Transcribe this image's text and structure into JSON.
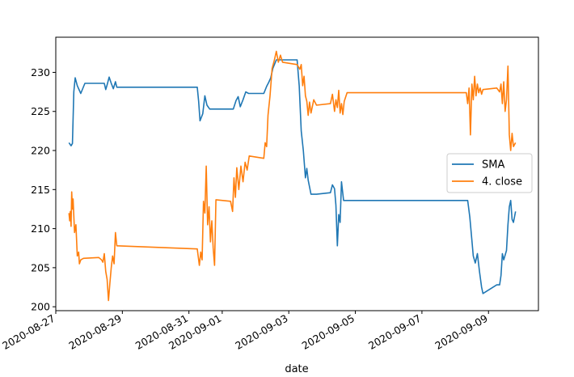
{
  "chart_data": {
    "type": "line",
    "title": "",
    "xlabel": "date",
    "ylabel": "",
    "grid": false,
    "legend_position": "center-right",
    "xlim": [
      "2020-08-27T00:00",
      "2020-09-10T12:00"
    ],
    "ylim": [
      199.5,
      234.5
    ],
    "x_ticks": [
      "2020-08-27",
      "2020-08-29",
      "2020-08-31",
      "2020-09-01",
      "2020-09-03",
      "2020-09-05",
      "2020-09-07",
      "2020-09-09"
    ],
    "y_ticks": [
      200,
      205,
      210,
      215,
      220,
      225,
      230
    ],
    "series": [
      {
        "name": "SMA",
        "color": "#1f77b4",
        "points": [
          [
            "2020-08-27T09:30",
            221.0
          ],
          [
            "2020-08-27T11:00",
            220.6
          ],
          [
            "2020-08-27T12:00",
            220.9
          ],
          [
            "2020-08-27T13:00",
            227.5
          ],
          [
            "2020-08-27T14:00",
            229.3
          ],
          [
            "2020-08-27T15:30",
            228.3
          ],
          [
            "2020-08-27T18:00",
            227.3
          ],
          [
            "2020-08-27T21:00",
            228.6
          ],
          [
            "2020-08-28T08:00",
            228.6
          ],
          [
            "2020-08-28T11:00",
            228.6
          ],
          [
            "2020-08-28T12:00",
            227.8
          ],
          [
            "2020-08-28T13:00",
            228.4
          ],
          [
            "2020-08-28T14:30",
            229.4
          ],
          [
            "2020-08-28T16:00",
            228.6
          ],
          [
            "2020-08-28T17:30",
            227.9
          ],
          [
            "2020-08-28T19:00",
            228.8
          ],
          [
            "2020-08-28T20:00",
            228.1
          ],
          [
            "2020-08-31T06:00",
            228.1
          ],
          [
            "2020-08-31T07:00",
            226.3
          ],
          [
            "2020-08-31T08:00",
            223.8
          ],
          [
            "2020-08-31T10:00",
            224.7
          ],
          [
            "2020-08-31T11:30",
            227.0
          ],
          [
            "2020-08-31T13:00",
            225.8
          ],
          [
            "2020-08-31T15:00",
            225.3
          ],
          [
            "2020-08-31T20:00",
            225.3
          ],
          [
            "2020-09-01T08:00",
            225.3
          ],
          [
            "2020-09-01T10:00",
            226.4
          ],
          [
            "2020-09-01T11:30",
            226.9
          ],
          [
            "2020-09-01T13:00",
            225.6
          ],
          [
            "2020-09-01T15:00",
            226.5
          ],
          [
            "2020-09-01T17:00",
            227.5
          ],
          [
            "2020-09-01T19:00",
            227.3
          ],
          [
            "2020-09-02T06:00",
            227.3
          ],
          [
            "2020-09-02T08:00",
            228.2
          ],
          [
            "2020-09-02T09:30",
            228.7
          ],
          [
            "2020-09-02T11:00",
            229.3
          ],
          [
            "2020-09-02T12:30",
            230.5
          ],
          [
            "2020-09-02T15:00",
            231.6
          ],
          [
            "2020-09-02T20:00",
            231.6
          ],
          [
            "2020-09-03T06:00",
            231.6
          ],
          [
            "2020-09-03T07:30",
            228.3
          ],
          [
            "2020-09-03T09:00",
            222.5
          ],
          [
            "2020-09-03T10:30",
            220.0
          ],
          [
            "2020-09-03T12:00",
            216.5
          ],
          [
            "2020-09-03T13:00",
            217.7
          ],
          [
            "2020-09-03T14:00",
            216.2
          ],
          [
            "2020-09-03T16:00",
            214.4
          ],
          [
            "2020-09-03T20:00",
            214.4
          ],
          [
            "2020-09-04T06:00",
            214.6
          ],
          [
            "2020-09-04T07:30",
            215.6
          ],
          [
            "2020-09-04T09:00",
            215.1
          ],
          [
            "2020-09-04T10:00",
            213.0
          ],
          [
            "2020-09-04T11:00",
            207.8
          ],
          [
            "2020-09-04T12:00",
            211.8
          ],
          [
            "2020-09-04T13:00",
            210.8
          ],
          [
            "2020-09-04T14:00",
            216.0
          ],
          [
            "2020-09-04T15:30",
            213.6
          ],
          [
            "2020-09-04T20:00",
            213.6
          ],
          [
            "2020-09-08T09:00",
            213.6
          ],
          [
            "2020-09-08T10:30",
            211.5
          ],
          [
            "2020-09-08T12:00",
            208.5
          ],
          [
            "2020-09-08T13:00",
            206.5
          ],
          [
            "2020-09-08T14:30",
            205.6
          ],
          [
            "2020-09-08T16:00",
            206.8
          ],
          [
            "2020-09-08T17:30",
            204.5
          ],
          [
            "2020-09-08T19:00",
            202.5
          ],
          [
            "2020-09-08T20:00",
            201.7
          ],
          [
            "2020-09-09T06:00",
            202.8
          ],
          [
            "2020-09-09T08:00",
            202.8
          ],
          [
            "2020-09-09T09:00",
            204.0
          ],
          [
            "2020-09-09T10:00",
            206.8
          ],
          [
            "2020-09-09T11:00",
            206.0
          ],
          [
            "2020-09-09T13:00",
            207.2
          ],
          [
            "2020-09-09T14:00",
            210.5
          ],
          [
            "2020-09-09T15:00",
            212.8
          ],
          [
            "2020-09-09T16:00",
            213.6
          ],
          [
            "2020-09-09T17:00",
            211.2
          ],
          [
            "2020-09-09T18:00",
            210.8
          ],
          [
            "2020-09-09T19:30",
            212.2
          ]
        ]
      },
      {
        "name": "4. close",
        "color": "#ff7f0e",
        "points": [
          [
            "2020-08-27T09:30",
            212.0
          ],
          [
            "2020-08-27T10:00",
            211.0
          ],
          [
            "2020-08-27T10:30",
            212.2
          ],
          [
            "2020-08-27T11:00",
            210.3
          ],
          [
            "2020-08-27T11:30",
            214.7
          ],
          [
            "2020-08-27T12:00",
            212.5
          ],
          [
            "2020-08-27T12:30",
            213.8
          ],
          [
            "2020-08-27T13:30",
            209.5
          ],
          [
            "2020-08-27T14:30",
            210.5
          ],
          [
            "2020-08-27T15:30",
            206.5
          ],
          [
            "2020-08-27T16:30",
            207.0
          ],
          [
            "2020-08-27T17:00",
            205.5
          ],
          [
            "2020-08-27T18:00",
            206.0
          ],
          [
            "2020-08-27T20:00",
            206.2
          ],
          [
            "2020-08-28T07:00",
            206.3
          ],
          [
            "2020-08-28T09:00",
            206.0
          ],
          [
            "2020-08-28T10:00",
            205.7
          ],
          [
            "2020-08-28T11:00",
            206.8
          ],
          [
            "2020-08-28T12:00",
            204.5
          ],
          [
            "2020-08-28T13:00",
            203.5
          ],
          [
            "2020-08-28T14:00",
            200.8
          ],
          [
            "2020-08-28T15:00",
            203.0
          ],
          [
            "2020-08-28T16:00",
            205.0
          ],
          [
            "2020-08-28T17:00",
            206.5
          ],
          [
            "2020-08-28T18:00",
            205.5
          ],
          [
            "2020-08-28T19:00",
            209.5
          ],
          [
            "2020-08-28T20:00",
            207.8
          ],
          [
            "2020-08-31T06:00",
            207.4
          ],
          [
            "2020-08-31T07:30",
            205.3
          ],
          [
            "2020-08-31T08:30",
            207.0
          ],
          [
            "2020-08-31T09:30",
            206.0
          ],
          [
            "2020-08-31T10:30",
            213.5
          ],
          [
            "2020-08-31T11:30",
            212.0
          ],
          [
            "2020-08-31T12:30",
            218.0
          ],
          [
            "2020-08-31T13:30",
            210.5
          ],
          [
            "2020-08-31T14:30",
            212.8
          ],
          [
            "2020-08-31T15:30",
            208.3
          ],
          [
            "2020-08-31T16:30",
            211.0
          ],
          [
            "2020-08-31T17:30",
            207.5
          ],
          [
            "2020-08-31T18:30",
            205.3
          ],
          [
            "2020-08-31T19:30",
            213.7
          ],
          [
            "2020-09-01T06:00",
            213.5
          ],
          [
            "2020-09-01T07:30",
            212.2
          ],
          [
            "2020-09-01T08:30",
            216.5
          ],
          [
            "2020-09-01T09:30",
            214.0
          ],
          [
            "2020-09-01T10:30",
            217.8
          ],
          [
            "2020-09-01T12:00",
            215.0
          ],
          [
            "2020-09-01T13:30",
            218.0
          ],
          [
            "2020-09-01T15:00",
            216.0
          ],
          [
            "2020-09-01T16:30",
            218.5
          ],
          [
            "2020-09-01T18:00",
            217.5
          ],
          [
            "2020-09-01T19:30",
            219.3
          ],
          [
            "2020-09-02T06:00",
            219.0
          ],
          [
            "2020-09-02T07:00",
            221.0
          ],
          [
            "2020-09-02T08:00",
            220.5
          ],
          [
            "2020-09-02T09:00",
            224.5
          ],
          [
            "2020-09-02T10:30",
            227.0
          ],
          [
            "2020-09-02T12:00",
            230.5
          ],
          [
            "2020-09-02T13:30",
            231.5
          ],
          [
            "2020-09-02T15:00",
            232.7
          ],
          [
            "2020-09-02T16:30",
            231.3
          ],
          [
            "2020-09-02T18:00",
            232.2
          ],
          [
            "2020-09-02T19:30",
            231.3
          ],
          [
            "2020-09-03T06:00",
            231.0
          ],
          [
            "2020-09-03T08:00",
            230.4
          ],
          [
            "2020-09-03T09:00",
            231.0
          ],
          [
            "2020-09-03T10:00",
            228.3
          ],
          [
            "2020-09-03T11:00",
            229.5
          ],
          [
            "2020-09-03T12:00",
            227.0
          ],
          [
            "2020-09-03T13:00",
            226.3
          ],
          [
            "2020-09-03T14:00",
            224.5
          ],
          [
            "2020-09-03T15:00",
            226.2
          ],
          [
            "2020-09-03T16:00",
            224.8
          ],
          [
            "2020-09-03T18:00",
            226.5
          ],
          [
            "2020-09-03T20:00",
            225.8
          ],
          [
            "2020-09-04T06:00",
            226.0
          ],
          [
            "2020-09-04T07:30",
            227.2
          ],
          [
            "2020-09-04T09:00",
            225.0
          ],
          [
            "2020-09-04T10:00",
            226.5
          ],
          [
            "2020-09-04T11:00",
            225.5
          ],
          [
            "2020-09-04T12:00",
            227.7
          ],
          [
            "2020-09-04T13:00",
            224.8
          ],
          [
            "2020-09-04T14:00",
            226.0
          ],
          [
            "2020-09-04T15:00",
            224.6
          ],
          [
            "2020-09-04T16:00",
            226.3
          ],
          [
            "2020-09-04T18:00",
            227.4
          ],
          [
            "2020-09-08T08:00",
            227.4
          ],
          [
            "2020-09-08T09:00",
            226.0
          ],
          [
            "2020-09-08T10:00",
            228.0
          ],
          [
            "2020-09-08T11:00",
            222.0
          ],
          [
            "2020-09-08T12:00",
            228.5
          ],
          [
            "2020-09-08T13:00",
            226.5
          ],
          [
            "2020-09-08T14:00",
            229.5
          ],
          [
            "2020-09-08T15:00",
            227.0
          ],
          [
            "2020-09-08T16:00",
            228.5
          ],
          [
            "2020-09-08T17:00",
            227.4
          ],
          [
            "2020-09-08T18:00",
            228.0
          ],
          [
            "2020-09-08T19:00",
            227.2
          ],
          [
            "2020-09-08T20:00",
            227.8
          ],
          [
            "2020-09-09T06:00",
            228.0
          ],
          [
            "2020-09-09T08:00",
            227.5
          ],
          [
            "2020-09-09T09:00",
            228.5
          ],
          [
            "2020-09-09T10:00",
            226.0
          ],
          [
            "2020-09-09T11:00",
            228.8
          ],
          [
            "2020-09-09T12:00",
            225.0
          ],
          [
            "2020-09-09T13:00",
            226.5
          ],
          [
            "2020-09-09T14:00",
            230.8
          ],
          [
            "2020-09-09T15:00",
            222.0
          ],
          [
            "2020-09-09T16:00",
            220.0
          ],
          [
            "2020-09-09T17:00",
            222.2
          ],
          [
            "2020-09-09T18:00",
            220.5
          ],
          [
            "2020-09-09T19:30",
            221.0
          ]
        ]
      }
    ]
  }
}
